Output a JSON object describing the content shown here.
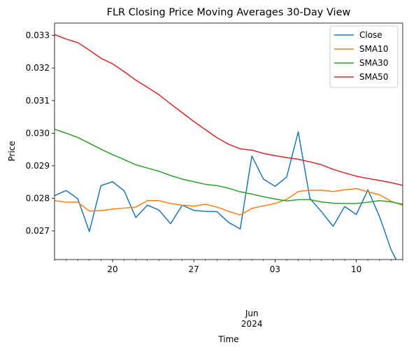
{
  "chart_data": {
    "type": "line",
    "title": "FLR Closing Price Moving Averages 30-Day View",
    "xlabel": "Time",
    "ylabel": "Price",
    "x_range": [
      "2024-05-15",
      "2024-06-14"
    ],
    "ylim": [
      0.02612,
      0.03338
    ],
    "x_ticks": [
      {
        "date": "2024-05-20",
        "label": "20"
      },
      {
        "date": "2024-05-27",
        "label": "27"
      },
      {
        "date": "2024-06-03",
        "label": "03"
      },
      {
        "date": "2024-06-10",
        "label": "10"
      }
    ],
    "x_month_label": "Jun",
    "x_month_label_date": "2024-06-01",
    "x_year_label": "2024",
    "y_ticks": [
      0.027,
      0.028,
      0.029,
      0.03,
      0.031,
      0.032,
      0.033
    ],
    "y_tick_labels": [
      "0.027",
      "0.028",
      "0.029",
      "0.030",
      "0.031",
      "0.032",
      "0.033"
    ],
    "legend_position": "top-right",
    "dates": [
      "2024-05-15",
      "2024-05-16",
      "2024-05-17",
      "2024-05-18",
      "2024-05-19",
      "2024-05-20",
      "2024-05-21",
      "2024-05-22",
      "2024-05-23",
      "2024-05-24",
      "2024-05-25",
      "2024-05-26",
      "2024-05-27",
      "2024-05-28",
      "2024-05-29",
      "2024-05-30",
      "2024-05-31",
      "2024-06-01",
      "2024-06-02",
      "2024-06-03",
      "2024-06-04",
      "2024-06-05",
      "2024-06-06",
      "2024-06-07",
      "2024-06-08",
      "2024-06-09",
      "2024-06-10",
      "2024-06-11",
      "2024-06-12",
      "2024-06-13",
      "2024-06-14"
    ],
    "series": [
      {
        "name": "Close",
        "color": "#1f77b4",
        "values": [
          0.02808,
          0.02824,
          0.02799,
          0.02698,
          0.02839,
          0.02851,
          0.02823,
          0.02741,
          0.02779,
          0.02764,
          0.02722,
          0.02779,
          0.02763,
          0.0276,
          0.02759,
          0.02726,
          0.02706,
          0.0293,
          0.02859,
          0.02837,
          0.02865,
          0.03004,
          0.028,
          0.02759,
          0.02714,
          0.02775,
          0.0275,
          0.02826,
          0.02744,
          0.02642,
          0.02572
        ]
      },
      {
        "name": "SMA10",
        "color": "#ff7f0e",
        "values": [
          0.02793,
          0.02788,
          0.02788,
          0.02761,
          0.02762,
          0.02767,
          0.0277,
          0.02773,
          0.02793,
          0.02793,
          0.02784,
          0.02779,
          0.02776,
          0.02782,
          0.02773,
          0.0276,
          0.02749,
          0.02769,
          0.02777,
          0.02784,
          0.02797,
          0.02821,
          0.02825,
          0.02825,
          0.02821,
          0.02826,
          0.0283,
          0.0282,
          0.02811,
          0.02791,
          0.02779
        ]
      },
      {
        "name": "SMA30",
        "color": "#2ca02c",
        "values": [
          0.03012,
          0.03,
          0.02987,
          0.02969,
          0.02951,
          0.02934,
          0.02919,
          0.02903,
          0.02893,
          0.02883,
          0.0287,
          0.02859,
          0.02851,
          0.02843,
          0.02839,
          0.02831,
          0.0282,
          0.02813,
          0.02805,
          0.02798,
          0.02792,
          0.02796,
          0.02796,
          0.02789,
          0.02785,
          0.02784,
          0.02784,
          0.02788,
          0.02793,
          0.02789,
          0.02782
        ]
      },
      {
        "name": "SMA50",
        "color": "#d62728",
        "values": [
          0.03303,
          0.03289,
          0.03278,
          0.03255,
          0.0323,
          0.03213,
          0.03189,
          0.03163,
          0.03141,
          0.03118,
          0.0309,
          0.03063,
          0.03036,
          0.03011,
          0.02986,
          0.02966,
          0.02952,
          0.02948,
          0.02938,
          0.02931,
          0.02925,
          0.0292,
          0.02912,
          0.02903,
          0.02889,
          0.02878,
          0.02868,
          0.02861,
          0.02855,
          0.02848,
          0.0284
        ]
      }
    ]
  }
}
